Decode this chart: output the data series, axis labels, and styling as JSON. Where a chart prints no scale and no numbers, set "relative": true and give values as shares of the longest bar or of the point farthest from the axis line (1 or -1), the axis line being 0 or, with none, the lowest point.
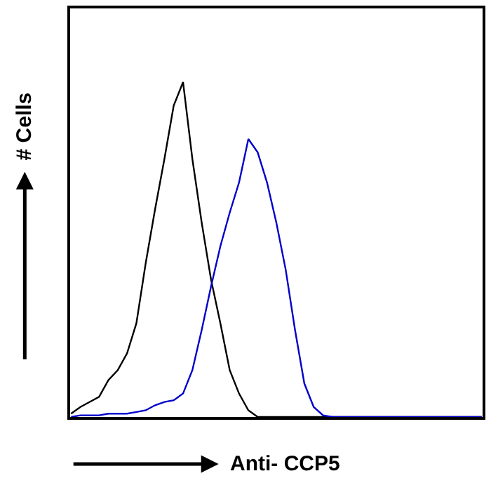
{
  "chart_data": {
    "type": "line",
    "relative": true,
    "xlabel": "Anti- CCP5",
    "ylabel": "# Cells",
    "marker": "none",
    "line_style": "solid",
    "categories": [
      null,
      null,
      null,
      null,
      null,
      null,
      null,
      null,
      null,
      null,
      null,
      null,
      null,
      null,
      null,
      null,
      null,
      null,
      null,
      null,
      null,
      null,
      null,
      null,
      null,
      null,
      null,
      null,
      null,
      null,
      null,
      null,
      null,
      null,
      null,
      null,
      null,
      null,
      null,
      null,
      null,
      null,
      null,
      null,
      null
    ],
    "series": [
      {
        "color": "#000000",
        "values": [
          0.01,
          0.03,
          0.045,
          0.06,
          0.11,
          0.14,
          0.19,
          0.28,
          0.46,
          0.62,
          0.77,
          0.93,
          1.0,
          0.77,
          0.58,
          0.41,
          0.28,
          0.14,
          0.07,
          0.02,
          0,
          0,
          0,
          0,
          0,
          0,
          0,
          0,
          0,
          0,
          0,
          0,
          0,
          0,
          0,
          0,
          0,
          0,
          0,
          0,
          0,
          0,
          0,
          0,
          0
        ]
      },
      {
        "color": "#0000cc",
        "values": [
          0,
          0.005,
          0.005,
          0.005,
          0.01,
          0.01,
          0.01,
          0.015,
          0.02,
          0.035,
          0.045,
          0.05,
          0.07,
          0.14,
          0.26,
          0.39,
          0.51,
          0.61,
          0.7,
          0.83,
          0.79,
          0.7,
          0.58,
          0.44,
          0.26,
          0.1,
          0.03,
          0.005,
          0,
          0,
          0,
          0,
          0,
          0,
          0,
          0,
          0,
          0,
          0,
          0,
          0,
          0,
          0,
          0,
          0
        ]
      }
    ]
  }
}
